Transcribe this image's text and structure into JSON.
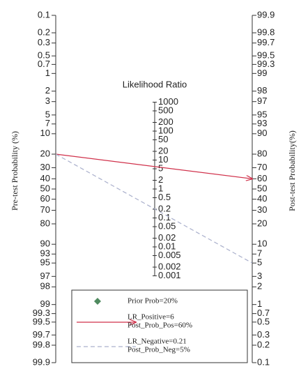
{
  "chart_data": {
    "type": "fagan",
    "y_label": "Pre-test Probability (%)",
    "y2_label": "Post-test Probability(%)",
    "lr_label": "Likelihood Ratio",
    "ylim": [
      0.1,
      99.9
    ],
    "yticks": [
      0.1,
      0.2,
      0.3,
      0.5,
      0.7,
      1,
      2,
      3,
      5,
      7,
      10,
      20,
      30,
      40,
      50,
      60,
      70,
      80,
      90,
      93,
      95,
      97,
      98,
      99,
      99.3,
      99.5,
      99.7,
      99.8,
      99.9
    ],
    "y2lim": [
      99.9,
      0.1
    ],
    "y2ticks": [
      99.9,
      99.8,
      99.7,
      99.5,
      99.3,
      99,
      98,
      97,
      95,
      93,
      90,
      80,
      70,
      60,
      50,
      40,
      30,
      20,
      10,
      7,
      5,
      3,
      2,
      1,
      0.7,
      0.5,
      0.3,
      0.2,
      0.1
    ],
    "lrlim": [
      1000,
      0.001
    ],
    "lrticks": [
      1000,
      500,
      200,
      100,
      50,
      20,
      10,
      5,
      2,
      1,
      0.5,
      0.2,
      0.1,
      0.05,
      0.02,
      0.01,
      0.005,
      0.002,
      0.001
    ],
    "prior": {
      "name": "Prior Prob=20%",
      "value": 20,
      "color": "#4f8a5f"
    },
    "series": [
      {
        "legend": [
          "LR_Positive=6",
          "Post_Prob_Pos=60%"
        ],
        "lr": 6,
        "post": 60,
        "color": "#d0304a",
        "dashed": false
      },
      {
        "legend": [
          "LR_Negative=0.21",
          "Post_Prob_Neg=5%"
        ],
        "lr": 0.21,
        "post": 5,
        "color": "#aab0cc",
        "dashed": true
      }
    ]
  }
}
